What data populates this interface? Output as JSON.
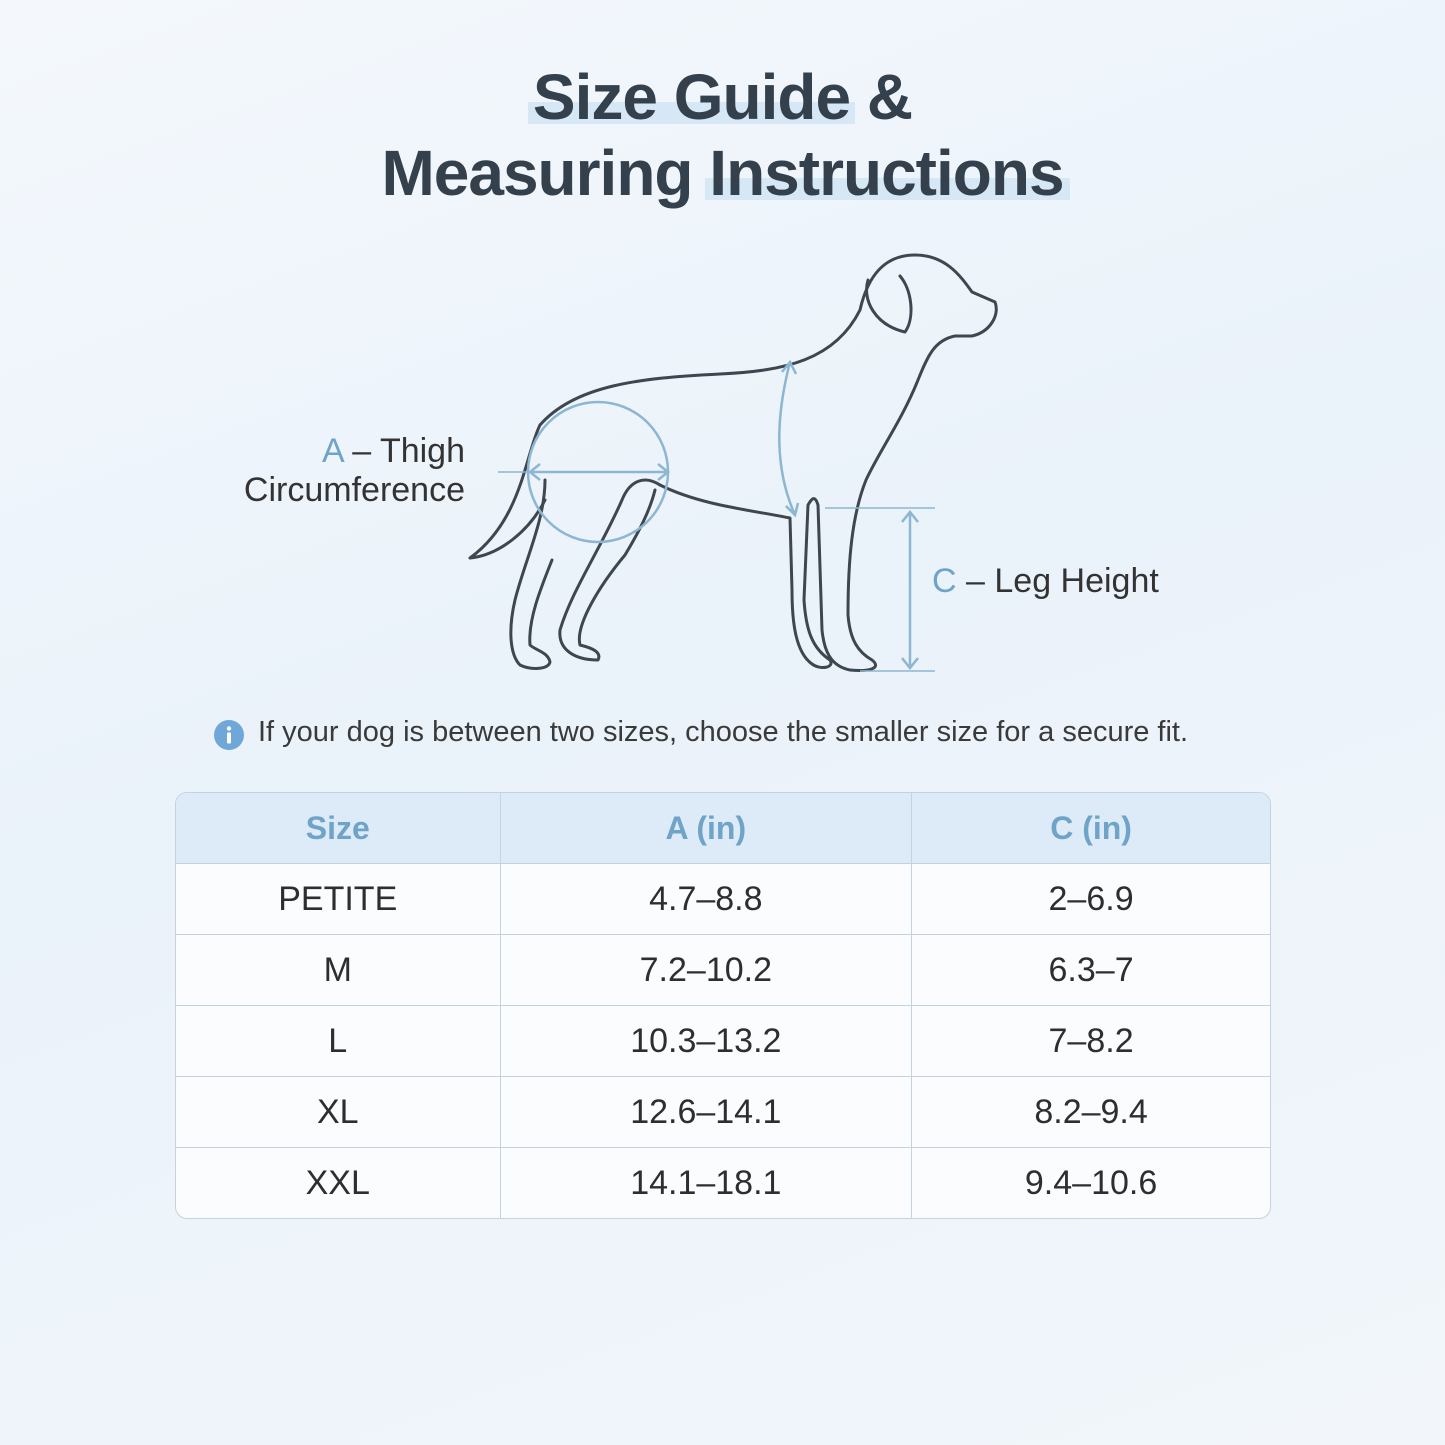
{
  "title": {
    "line1": "Size Guide &",
    "line2": "Measuring Instructions"
  },
  "diagram": {
    "thigh": {
      "letter": "A",
      "text": "– Thigh",
      "line2": "Circumference"
    },
    "leg": {
      "letter": "C",
      "text": "– Leg Height"
    }
  },
  "note": "If your dog is between two sizes, choose the smaller size for a secure fit.",
  "table": {
    "header": [
      "Size",
      "A (in)",
      "C (in)"
    ],
    "rows": [
      [
        "PETITE",
        "4.7–8.8",
        "2–6.9"
      ],
      [
        "M",
        "7.2–10.2",
        "6.3–7"
      ],
      [
        "L",
        "10.3–13.2",
        "7–8.2"
      ],
      [
        "XL",
        "12.6–14.1",
        "8.2–9.4"
      ],
      [
        "XXL",
        "14.1–18.1",
        "9.4–10.6"
      ]
    ]
  }
}
